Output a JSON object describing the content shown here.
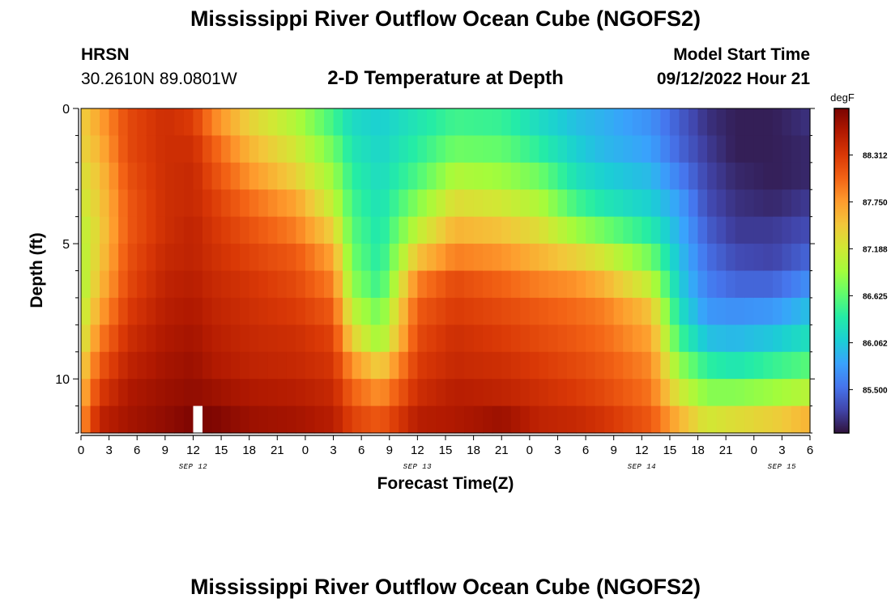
{
  "header": {
    "title": "Mississippi River Outflow Ocean Cube (NGOFS2)",
    "station": "HRSN",
    "coords": "30.2610N  89.0801W",
    "subtitle": "2-D Temperature at Depth",
    "start_label": "Model Start Time",
    "start_value": "09/12/2022 Hour 21"
  },
  "footer": {
    "title": "Mississippi River Outflow Ocean Cube (NGOFS2)"
  },
  "colors": {
    "palette": [
      "#30123b",
      "#4145ab",
      "#4675ed",
      "#39a2fc",
      "#1bcfd4",
      "#24eca6",
      "#61fc6c",
      "#a4fc3b",
      "#d1e834",
      "#f3c63a",
      "#fe9b2d",
      "#f36315",
      "#d93806",
      "#b11901",
      "#7a0402"
    ]
  },
  "chart_data": {
    "type": "heatmap",
    "title": "2-D Temperature at Depth",
    "xlabel": "Forecast Time(Z)",
    "ylabel": "Depth (ft)",
    "x_ticks": [
      "0",
      "3",
      "6",
      "9",
      "12",
      "15",
      "18",
      "21",
      "0",
      "3",
      "6",
      "9",
      "12",
      "15",
      "18",
      "21",
      "0",
      "3",
      "6",
      "9",
      "12",
      "15",
      "18",
      "21",
      "0",
      "3",
      "6"
    ],
    "date_labels": [
      {
        "label": "SEP 12",
        "hour": 12
      },
      {
        "label": "SEP 13",
        "hour": 36
      },
      {
        "label": "SEP 14",
        "hour": 60
      },
      {
        "label": "SEP 15",
        "hour": 75
      }
    ],
    "x_range_hours": [
      0,
      78
    ],
    "y_range_ft": [
      0,
      12
    ],
    "y_ticks": [
      "0",
      "5",
      "10"
    ],
    "colorbar_unit": "degF",
    "colorbar_ticks": [
      "88.312",
      "87.750",
      "87.188",
      "86.625",
      "86.062",
      "85.500"
    ],
    "colorbar_range": [
      84.98,
      88.87
    ],
    "depth_levels_ft": [
      0.5,
      1.5,
      2.5,
      3.5,
      4.5,
      5.5,
      6.5,
      7.5,
      8.5,
      9.5,
      10.5,
      11.5
    ],
    "keyframes": [
      {
        "hour": 0,
        "values": [
          87.4,
          87.35,
          87.25,
          87.15,
          87.05,
          87.0,
          86.95,
          87.05,
          87.15,
          87.35,
          87.55,
          87.75
        ]
      },
      {
        "hour": 2,
        "values": [
          87.7,
          87.6,
          87.5,
          87.45,
          87.4,
          87.45,
          87.55,
          87.7,
          87.9,
          88.1,
          88.3,
          88.5
        ]
      },
      {
        "hour": 5,
        "values": [
          88.2,
          88.2,
          88.15,
          88.1,
          88.1,
          88.15,
          88.2,
          88.3,
          88.4,
          88.5,
          88.6,
          88.65
        ]
      },
      {
        "hour": 9,
        "values": [
          88.4,
          88.4,
          88.4,
          88.4,
          88.4,
          88.45,
          88.5,
          88.55,
          88.6,
          88.65,
          88.7,
          88.75
        ]
      },
      {
        "hour": 12,
        "values": [
          88.3,
          88.4,
          88.45,
          88.45,
          88.5,
          88.5,
          88.55,
          88.6,
          88.65,
          88.7,
          88.75,
          88.85
        ]
      },
      {
        "hour": 14,
        "values": [
          87.9,
          88.1,
          88.2,
          88.3,
          88.35,
          88.4,
          88.45,
          88.5,
          88.55,
          88.6,
          88.7,
          88.85
        ]
      },
      {
        "hour": 18,
        "values": [
          87.4,
          87.6,
          87.8,
          88.0,
          88.15,
          88.25,
          88.35,
          88.4,
          88.45,
          88.5,
          88.6,
          88.7
        ]
      },
      {
        "hour": 23,
        "values": [
          87.0,
          87.2,
          87.4,
          87.7,
          87.9,
          88.1,
          88.2,
          88.3,
          88.4,
          88.45,
          88.55,
          88.65
        ]
      },
      {
        "hour": 27,
        "values": [
          86.5,
          86.7,
          86.9,
          87.1,
          87.4,
          87.7,
          87.9,
          88.1,
          88.25,
          88.35,
          88.45,
          88.55
        ]
      },
      {
        "hour": 29,
        "values": [
          86.2,
          86.3,
          86.4,
          86.5,
          86.6,
          86.7,
          86.85,
          87.1,
          87.4,
          87.8,
          88.05,
          88.25
        ]
      },
      {
        "hour": 32,
        "values": [
          86.1,
          86.15,
          86.2,
          86.25,
          86.3,
          86.35,
          86.45,
          86.7,
          86.9,
          87.4,
          87.8,
          88.1
        ]
      },
      {
        "hour": 36,
        "values": [
          86.3,
          86.4,
          86.55,
          86.8,
          87.1,
          87.5,
          87.9,
          88.1,
          88.2,
          88.3,
          88.4,
          88.55
        ]
      },
      {
        "hour": 40,
        "values": [
          86.5,
          86.7,
          87.0,
          87.3,
          87.6,
          87.9,
          88.2,
          88.3,
          88.4,
          88.45,
          88.55,
          88.6
        ]
      },
      {
        "hour": 45,
        "values": [
          86.45,
          86.65,
          86.9,
          87.2,
          87.5,
          87.8,
          88.05,
          88.2,
          88.3,
          88.4,
          88.5,
          88.7
        ]
      },
      {
        "hour": 49,
        "values": [
          86.2,
          86.4,
          86.7,
          87.0,
          87.3,
          87.6,
          87.9,
          88.1,
          88.2,
          88.3,
          88.4,
          88.5
        ]
      },
      {
        "hour": 53,
        "values": [
          86.0,
          86.1,
          86.25,
          86.5,
          86.9,
          87.4,
          87.8,
          88.0,
          88.1,
          88.2,
          88.3,
          88.45
        ]
      },
      {
        "hour": 56,
        "values": [
          85.9,
          85.95,
          86.1,
          86.3,
          86.7,
          87.2,
          87.6,
          87.9,
          88.0,
          88.1,
          88.2,
          88.35
        ]
      },
      {
        "hour": 61,
        "values": [
          85.7,
          85.8,
          85.95,
          86.1,
          86.35,
          86.7,
          87.1,
          87.5,
          87.7,
          87.85,
          87.95,
          88.1
        ]
      },
      {
        "hour": 64,
        "values": [
          85.4,
          85.45,
          85.6,
          85.8,
          85.9,
          86.0,
          86.1,
          86.25,
          86.5,
          86.85,
          87.2,
          87.6
        ]
      },
      {
        "hour": 67,
        "values": [
          85.15,
          85.2,
          85.25,
          85.3,
          85.4,
          85.5,
          85.6,
          85.75,
          86.0,
          86.4,
          86.8,
          87.2
        ]
      },
      {
        "hour": 70,
        "values": [
          85.05,
          85.05,
          85.1,
          85.15,
          85.2,
          85.3,
          85.45,
          85.7,
          85.95,
          86.3,
          86.8,
          87.3
        ]
      },
      {
        "hour": 74,
        "values": [
          85.05,
          85.05,
          85.05,
          85.1,
          85.2,
          85.25,
          85.45,
          85.75,
          86.05,
          86.45,
          86.9,
          87.4
        ]
      },
      {
        "hour": 78,
        "values": [
          85.15,
          85.1,
          85.1,
          85.2,
          85.3,
          85.45,
          85.7,
          86.0,
          86.25,
          86.6,
          87.05,
          87.6
        ]
      }
    ],
    "missing_cell": {
      "hour": 12,
      "depth_ft": 11.5
    }
  }
}
